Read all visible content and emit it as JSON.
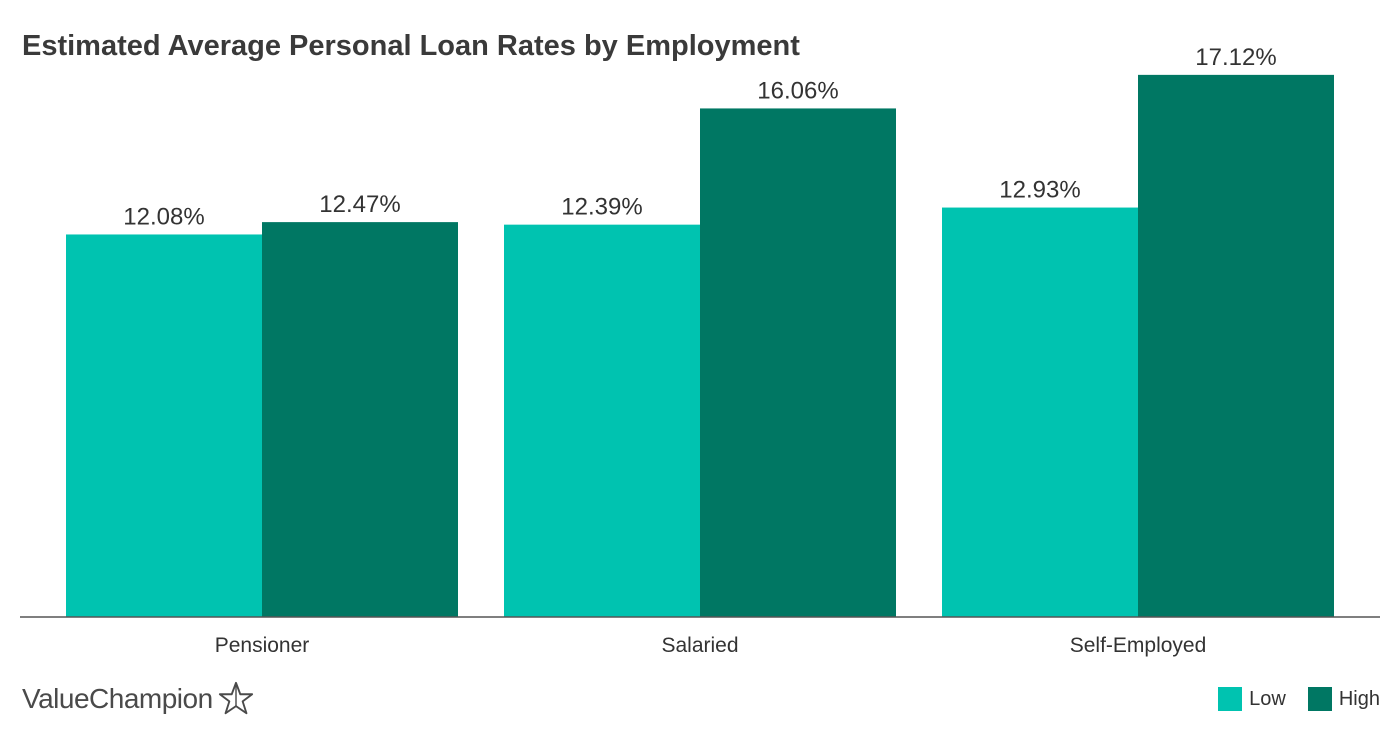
{
  "chart_data": {
    "type": "bar",
    "title": "Estimated Average Personal Loan Rates by Employment",
    "categories": [
      "Pensioner",
      "Salaried",
      "Self-Employed"
    ],
    "series": [
      {
        "name": "Low",
        "values": [
          12.08,
          12.39,
          12.93
        ],
        "labels": [
          "12.08%",
          "12.39%",
          "12.93%"
        ],
        "color": "#00c3b0"
      },
      {
        "name": "High",
        "values": [
          12.47,
          16.06,
          17.12
        ],
        "labels": [
          "12.47%",
          "16.06%",
          "17.12%"
        ],
        "color": "#007763"
      }
    ],
    "xlabel": "",
    "ylabel": "",
    "ylim": [
      0,
      18
    ],
    "grid": false,
    "legend_position": "bottom-right"
  },
  "brand": {
    "name": "ValueChampion",
    "icon": "star-outline-icon"
  },
  "colors": {
    "axis": "#555555",
    "text": "#333333"
  }
}
